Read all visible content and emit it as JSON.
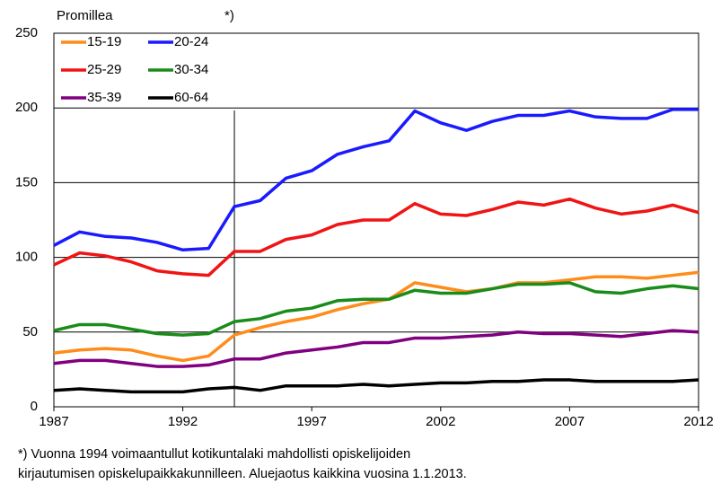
{
  "chart_data": {
    "type": "line",
    "y_label": "Promillea",
    "annotation": {
      "text": "*)",
      "x": 1994
    },
    "x": [
      1987,
      1988,
      1989,
      1990,
      1991,
      1992,
      1993,
      1994,
      1995,
      1996,
      1997,
      1998,
      1999,
      2000,
      2001,
      2002,
      2003,
      2004,
      2005,
      2006,
      2007,
      2008,
      2009,
      2010,
      2011,
      2012
    ],
    "series": [
      {
        "name": "15-19",
        "color": "#ff8c1a",
        "values": [
          36,
          38,
          39,
          38,
          34,
          31,
          34,
          48,
          53,
          57,
          60,
          65,
          69,
          72,
          83,
          80,
          77,
          79,
          83,
          83,
          85,
          87,
          87,
          86,
          88,
          90
        ]
      },
      {
        "name": "20-24",
        "color": "#1a1aff",
        "values": [
          108,
          117,
          114,
          113,
          110,
          105,
          106,
          134,
          138,
          153,
          158,
          169,
          174,
          178,
          198,
          190,
          185,
          191,
          195,
          195,
          198,
          194,
          193,
          193,
          199,
          199
        ]
      },
      {
        "name": "25-29",
        "color": "#f01414",
        "values": [
          95,
          103,
          101,
          97,
          91,
          89,
          88,
          104,
          104,
          112,
          115,
          122,
          125,
          125,
          136,
          129,
          128,
          132,
          137,
          135,
          139,
          133,
          129,
          131,
          135,
          130
        ]
      },
      {
        "name": "30-34",
        "color": "#1a8c1a",
        "values": [
          51,
          55,
          55,
          52,
          49,
          48,
          49,
          57,
          59,
          64,
          66,
          71,
          72,
          72,
          78,
          76,
          76,
          79,
          82,
          82,
          83,
          77,
          76,
          79,
          81,
          79
        ]
      },
      {
        "name": "35-39",
        "color": "#800080",
        "values": [
          29,
          31,
          31,
          29,
          27,
          27,
          28,
          32,
          32,
          36,
          38,
          40,
          43,
          43,
          46,
          46,
          47,
          48,
          50,
          49,
          49,
          48,
          47,
          49,
          51,
          50
        ]
      },
      {
        "name": "60-64",
        "color": "#000000",
        "values": [
          11,
          12,
          11,
          10,
          10,
          10,
          12,
          13,
          11,
          14,
          14,
          14,
          15,
          14,
          15,
          16,
          16,
          17,
          17,
          18,
          18,
          17,
          17,
          17,
          17,
          18
        ]
      }
    ],
    "xlim": [
      1987,
      2012
    ],
    "xticks": [
      1987,
      1992,
      1997,
      2002,
      2007,
      2012
    ],
    "ylim": [
      0,
      250
    ],
    "yticks": [
      0,
      50,
      100,
      150,
      200,
      250
    ],
    "grid": true,
    "footnote": [
      "*) Vuonna 1994 voimaantullut kotikuntalaki mahdollisti opiskelijoiden",
      "kirjautumisen opiskelupaikkakunnilleen. Aluejaotus kaikkina vuosina 1.1.2013."
    ]
  }
}
